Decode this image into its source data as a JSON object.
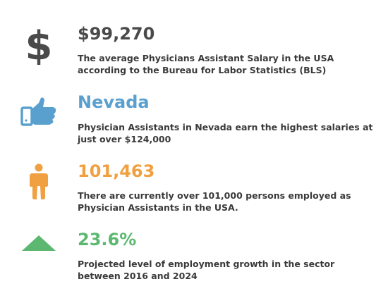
{
  "colors": {
    "dollar": "#4a4a4a",
    "thumb": "#5aa0cf",
    "person": "#f0a040",
    "arrow": "#5cb870",
    "text": "#3a3a3a"
  },
  "stats": [
    {
      "icon": "dollar-icon",
      "value": "$99,270",
      "description": "The average Physicians Assistant Salary in the USA according to the Bureau for Labor Statistics (BLS)"
    },
    {
      "icon": "thumbs-up-icon",
      "value": "Nevada",
      "description": "Physician Assistants in Nevada earn the highest salaries at just over $124,000"
    },
    {
      "icon": "person-icon",
      "value": "101,463",
      "description": "There are currently over 101,000 persons employed as Physician Assistants in the USA."
    },
    {
      "icon": "up-arrow-icon",
      "value": "23.6%",
      "description": "Projected level of employment growth in the sector between 2016 and 2024"
    }
  ]
}
